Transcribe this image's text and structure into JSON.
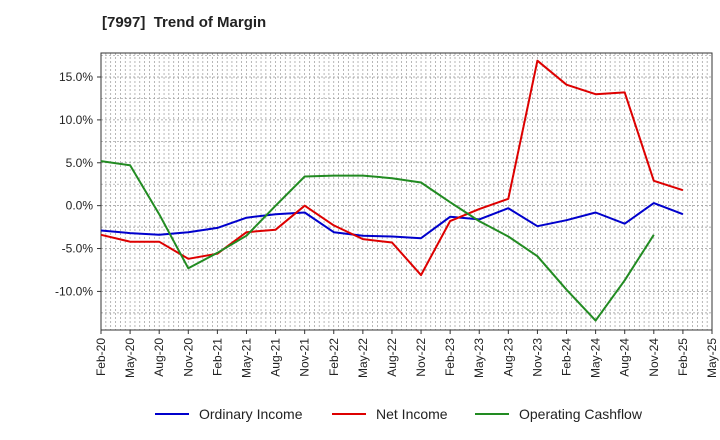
{
  "chart_data": {
    "type": "line",
    "title": "[7997]  Trend of Margin",
    "xlabel": "",
    "ylabel": "",
    "x": [
      "Feb-20",
      "May-20",
      "Aug-20",
      "Nov-20",
      "Feb-21",
      "May-21",
      "Aug-21",
      "Nov-21",
      "Feb-22",
      "May-22",
      "Aug-22",
      "Nov-22",
      "Feb-23",
      "May-23",
      "Aug-23",
      "Nov-23",
      "Feb-24",
      "May-24",
      "Aug-24",
      "Nov-24",
      "Feb-25",
      "May-25"
    ],
    "ylim": [
      -14.5,
      17.8
    ],
    "yticks": [
      15.0,
      10.0,
      5.0,
      0.0,
      -5.0,
      -10.0
    ],
    "ytick_labels": [
      "15.0%",
      "10.0%",
      "5.0%",
      "0.0%",
      "-5.0%",
      "-10.0%"
    ],
    "grid": true,
    "legend_position": "bottom",
    "series": [
      {
        "name": "Ordinary Income",
        "color": "#0000cc",
        "values": [
          -2.9,
          -3.2,
          -3.4,
          -3.1,
          -2.6,
          -1.4,
          -1.0,
          -0.8,
          -3.1,
          -3.5,
          -3.6,
          -3.8,
          -1.3,
          -1.6,
          -0.3,
          -2.4,
          -1.7,
          -0.8,
          -2.1,
          0.3,
          -1.0,
          null
        ]
      },
      {
        "name": "Net Income",
        "color": "#dd0000",
        "values": [
          -3.4,
          -4.2,
          -4.2,
          -6.2,
          -5.6,
          -3.1,
          -2.8,
          0.0,
          -2.3,
          -3.9,
          -4.3,
          -8.1,
          -1.8,
          -0.4,
          0.8,
          16.9,
          14.1,
          13.0,
          13.2,
          2.9,
          1.8,
          null
        ]
      },
      {
        "name": "Operating Cashflow",
        "color": "#228b22",
        "values": [
          5.2,
          4.7,
          -1.0,
          -7.3,
          -5.5,
          -3.5,
          0.0,
          3.4,
          3.5,
          3.5,
          3.2,
          2.7,
          0.4,
          -1.8,
          -3.6,
          -5.9,
          -9.8,
          -13.4,
          -8.7,
          -3.4,
          null,
          null
        ]
      }
    ]
  }
}
